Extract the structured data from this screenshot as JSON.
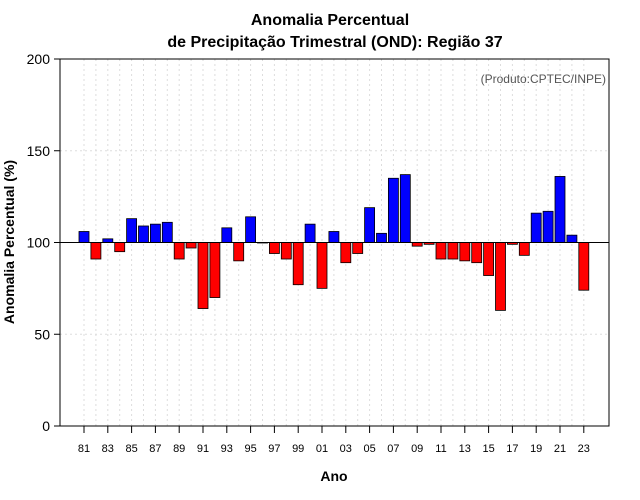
{
  "chart_data": {
    "type": "bar",
    "title": "Anomalia Percentual",
    "subtitle": "de Precipitação Trimestral (OND): Região 37",
    "xlabel": "Ano",
    "ylabel": "Anomalia Percentual (%)",
    "annotation": "(Produto:CPTEC/INPE)",
    "ylim": [
      0,
      200
    ],
    "yticks": [
      0,
      50,
      100,
      150,
      200
    ],
    "baseline": 100,
    "grid": true,
    "colors": {
      "above": "#0000ff",
      "below": "#ff0000",
      "outline": "#000000",
      "grid": "#dddddd"
    },
    "categories": [
      "1981",
      "1982",
      "1983",
      "1984",
      "1985",
      "1986",
      "1987",
      "1988",
      "1989",
      "1990",
      "1991",
      "1992",
      "1993",
      "1994",
      "1995",
      "1996",
      "1997",
      "1998",
      "1999",
      "2000",
      "2001",
      "2002",
      "2003",
      "2004",
      "2005",
      "2006",
      "2007",
      "2008",
      "2009",
      "2010",
      "2011",
      "2012",
      "2013",
      "2014",
      "2015",
      "2016",
      "2017",
      "2018",
      "2019",
      "2020",
      "2021",
      "2022",
      "2023"
    ],
    "xtick_labels": [
      "81",
      "83",
      "85",
      "87",
      "89",
      "91",
      "93",
      "95",
      "97",
      "99",
      "01",
      "03",
      "05",
      "07",
      "09",
      "11",
      "13",
      "15",
      "17",
      "19",
      "21",
      "23"
    ],
    "values": [
      106,
      91,
      102,
      95,
      113,
      109,
      110,
      111,
      91,
      97,
      64,
      70,
      108,
      90,
      114,
      100,
      94,
      91,
      77,
      110,
      75,
      106,
      89,
      94,
      119,
      105,
      135,
      137,
      98,
      99,
      91,
      91,
      90,
      89,
      82,
      63,
      99,
      93,
      116,
      117,
      136,
      104,
      74
    ]
  }
}
